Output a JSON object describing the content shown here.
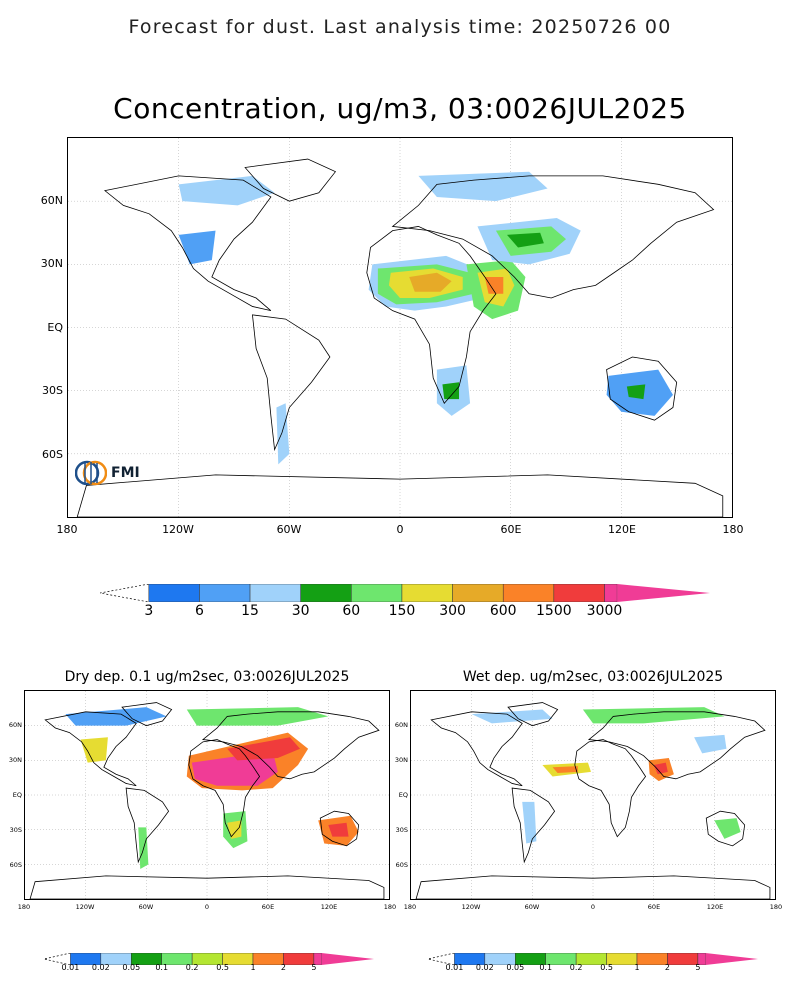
{
  "header": {
    "title": "Forecast for dust. Last analysis time: 20250726 00"
  },
  "main_map": {
    "title": "Concentration, ug/m3, 03:0026JUL2025",
    "lat_ticks": [
      "60N",
      "30N",
      "EQ",
      "30S",
      "60S"
    ],
    "lon_ticks": [
      "180",
      "120W",
      "60W",
      "0",
      "60E",
      "120E",
      "180"
    ],
    "logo_text": "FMI",
    "colorbar": {
      "labels": [
        "3",
        "6",
        "15",
        "30",
        "60",
        "150",
        "300",
        "600",
        "1500",
        "3000"
      ],
      "colors": [
        "#1e78f0",
        "#50a0f5",
        "#a0d2fa",
        "#14a014",
        "#6ee66e",
        "#e6dc32",
        "#e6aa28",
        "#fa8228",
        "#f03c3c",
        "#f03c96"
      ]
    }
  },
  "dry_map": {
    "title": "Dry dep. 0.1 ug/m2sec, 03:0026JUL2025",
    "lat_ticks": [
      "60N",
      "30N",
      "EQ",
      "30S",
      "60S"
    ],
    "lon_ticks": [
      "180",
      "120W",
      "60W",
      "0",
      "60E",
      "120E",
      "180"
    ],
    "colorbar": {
      "labels": [
        "0.01",
        "0.02",
        "0.05",
        "0.1",
        "0.2",
        "0.5",
        "1",
        "2",
        "5"
      ],
      "colors": [
        "#1e78f0",
        "#a0d2fa",
        "#14a014",
        "#6ee66e",
        "#b4e632",
        "#e6dc32",
        "#fa8228",
        "#f03c3c",
        "#f03c96"
      ]
    }
  },
  "wet_map": {
    "title": "Wet dep. ug/m2sec, 03:0026JUL2025",
    "lat_ticks": [
      "60N",
      "30N",
      "EQ",
      "30S",
      "60S"
    ],
    "lon_ticks": [
      "180",
      "120W",
      "60W",
      "0",
      "60E",
      "120E",
      "180"
    ],
    "colorbar": {
      "labels": [
        "0.01",
        "0.02",
        "0.05",
        "0.1",
        "0.2",
        "0.5",
        "1",
        "2",
        "5"
      ],
      "colors": [
        "#1e78f0",
        "#a0d2fa",
        "#14a014",
        "#6ee66e",
        "#b4e632",
        "#e6dc32",
        "#fa8228",
        "#f03c3c",
        "#f03c96"
      ]
    }
  }
}
